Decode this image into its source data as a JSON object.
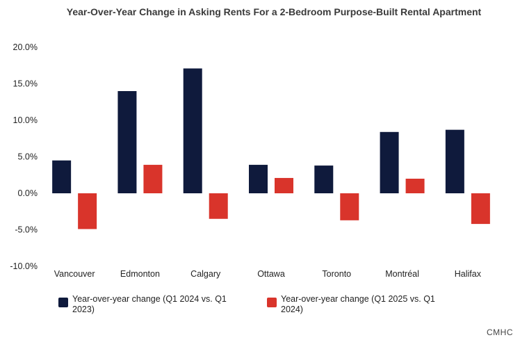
{
  "chart_data": {
    "type": "bar",
    "title": "Year-Over-Year Change in Asking Rents For a 2-Bedroom Purpose-Built Rental Apartment",
    "xlabel": "",
    "ylabel": "",
    "ylim": [
      -10,
      20
    ],
    "yticks": [
      20,
      15,
      10,
      5,
      0,
      -5,
      -10
    ],
    "ytick_labels": [
      "20.0%",
      "15.0%",
      "10.0%",
      "5.0%",
      "0.0%",
      "-5.0%",
      "-10.0%"
    ],
    "grid": false,
    "legend_position": "bottom",
    "categories": [
      "Vancouver",
      "Edmonton",
      "Calgary",
      "Ottawa",
      "Toronto",
      "Montréal",
      "Halifax"
    ],
    "series": [
      {
        "name": "Year-over-year change (Q1 2024 vs. Q1 2023)",
        "legend_lines": [
          "Year-over-year change (Q1 2024 vs. Q1",
          "2023)"
        ],
        "color": "#0f1a3c",
        "values": [
          4.5,
          14.0,
          17.1,
          3.9,
          3.8,
          8.4,
          8.7
        ]
      },
      {
        "name": "Year-over-year change (Q1 2025 vs. Q1 2024)",
        "legend_lines": [
          "Year-over-year change (Q1 2025 vs. Q1",
          "2024)"
        ],
        "color": "#d9342b",
        "values": [
          -4.9,
          3.9,
          -3.5,
          2.1,
          -3.7,
          2.0,
          -4.2
        ]
      }
    ]
  },
  "source": "CMHC"
}
